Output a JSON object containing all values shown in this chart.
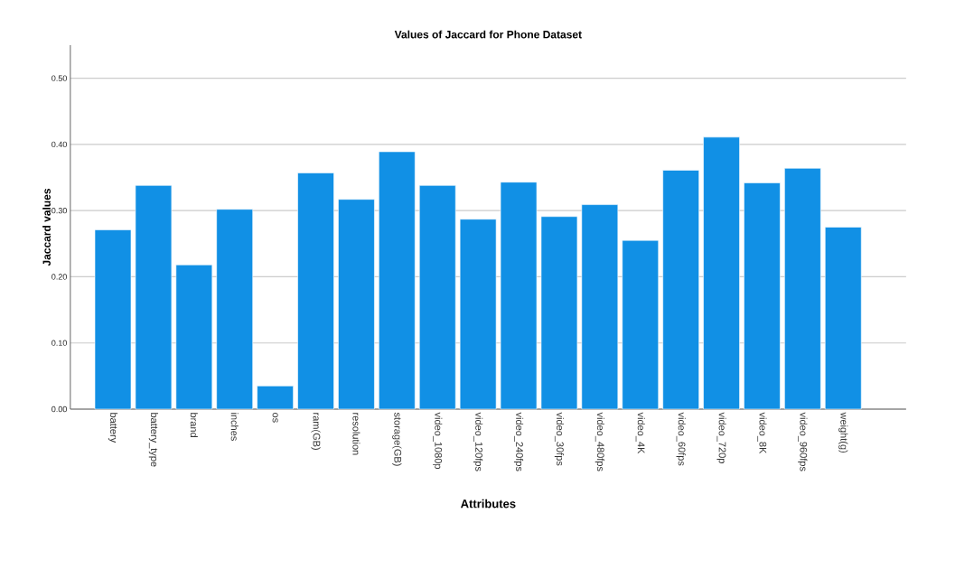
{
  "chart_data": {
    "type": "bar",
    "title": "Values of Jaccard for Phone Dataset",
    "xlabel": "Attributes",
    "ylabel": "Jaccard values",
    "categories": [
      "battery",
      "battery_type",
      "brand",
      "inches",
      "os",
      "ram(GB)",
      "resolution",
      "storage(GB)",
      "video_1080p",
      "video_120fps",
      "video_240fps",
      "video_30fps",
      "video_480fps",
      "video_4K",
      "video_60fps",
      "video_720p",
      "video_8K",
      "video_960fps",
      "weight(g)"
    ],
    "values": [
      0.271,
      0.338,
      0.218,
      0.302,
      0.035,
      0.357,
      0.317,
      0.389,
      0.338,
      0.287,
      0.343,
      0.291,
      0.309,
      0.255,
      0.361,
      0.411,
      0.342,
      0.364,
      0.275
    ],
    "color": "#1190e5",
    "ylim": [
      0,
      0.55
    ],
    "yticks": [
      {
        "value": 0,
        "label": "0.00"
      },
      {
        "value": 0.1,
        "label": "0.10"
      },
      {
        "value": 0.2,
        "label": "0.20"
      },
      {
        "value": 0.3,
        "label": "0.30"
      },
      {
        "value": 0.4,
        "label": "0.40"
      },
      {
        "value": 0.5,
        "label": "0.50"
      }
    ],
    "grid": "y"
  }
}
